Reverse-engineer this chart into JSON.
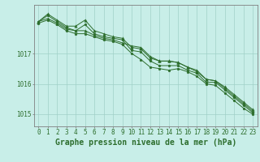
{
  "background_color": "#c8eee8",
  "grid_color": "#a0d0c8",
  "line_color": "#2d6e2d",
  "xlabel": "Graphe pression niveau de la mer (hPa)",
  "xlabel_fontsize": 7,
  "tick_fontsize": 5.5,
  "yticks": [
    1015,
    1016,
    1017
  ],
  "ylim": [
    1014.6,
    1018.6
  ],
  "xlim": [
    -0.5,
    23.5
  ],
  "xticks": [
    0,
    1,
    2,
    3,
    4,
    5,
    6,
    7,
    8,
    9,
    10,
    11,
    12,
    13,
    14,
    15,
    16,
    17,
    18,
    19,
    20,
    21,
    22,
    23
  ],
  "series": [
    [
      1018.05,
      1018.25,
      1018.05,
      1017.85,
      1017.75,
      1017.95,
      1017.65,
      1017.55,
      1017.5,
      1017.45,
      1017.1,
      1017.05,
      1016.75,
      1016.6,
      1016.6,
      1016.6,
      1016.45,
      1016.35,
      1016.05,
      1016.05,
      1015.8,
      1015.55,
      1015.3,
      1015.05
    ],
    [
      1018.05,
      1018.3,
      1018.1,
      1017.9,
      1017.9,
      1018.1,
      1017.75,
      1017.65,
      1017.55,
      1017.5,
      1017.2,
      1017.15,
      1016.85,
      1016.75,
      1016.75,
      1016.7,
      1016.55,
      1016.45,
      1016.15,
      1016.1,
      1015.9,
      1015.65,
      1015.4,
      1015.15
    ],
    [
      1018.0,
      1018.1,
      1017.95,
      1017.75,
      1017.65,
      1017.65,
      1017.55,
      1017.45,
      1017.4,
      1017.3,
      1017.0,
      1016.8,
      1016.55,
      1016.5,
      1016.45,
      1016.5,
      1016.4,
      1016.25,
      1016.0,
      1015.95,
      1015.7,
      1015.45,
      1015.2,
      1015.0
    ],
    [
      1018.05,
      1018.15,
      1018.0,
      1017.8,
      1017.75,
      1017.75,
      1017.6,
      1017.5,
      1017.45,
      1017.35,
      1017.25,
      1017.2,
      1016.9,
      1016.75,
      1016.75,
      1016.7,
      1016.55,
      1016.4,
      1016.15,
      1016.1,
      1015.85,
      1015.6,
      1015.35,
      1015.1
    ]
  ],
  "markers": [
    "o",
    "^",
    "o",
    "^"
  ],
  "marker_sizes": [
    2.0,
    2.5,
    2.0,
    2.5
  ]
}
